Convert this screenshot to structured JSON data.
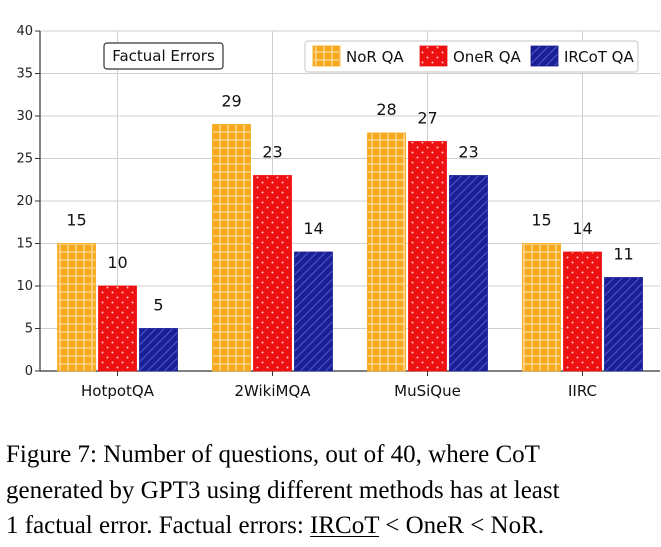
{
  "chart_data": {
    "type": "bar",
    "title": "Factual Errors",
    "categories": [
      "HotpotQA",
      "2WikiMQA",
      "MuSiQue",
      "IIRC"
    ],
    "series": [
      {
        "name": "NoR QA",
        "values": [
          15,
          29,
          28,
          15
        ],
        "color": "#f7a91d",
        "pattern": "grid"
      },
      {
        "name": "OneR QA",
        "values": [
          10,
          23,
          27,
          14
        ],
        "color": "#ee1111",
        "pattern": "dots"
      },
      {
        "name": "IRCoT QA",
        "values": [
          5,
          14,
          23,
          11
        ],
        "color": "#1a1f96",
        "pattern": "diagonal"
      }
    ],
    "ylim": [
      0,
      40
    ],
    "yticks": [
      "0",
      "5",
      "10",
      "15",
      "20",
      "25",
      "30",
      "35",
      "40"
    ],
    "xlabel": "",
    "ylabel": "",
    "grid": true,
    "legend_position": "top-right"
  },
  "caption": {
    "line1": "Figure 7: Number of questions, out of 40, where CoT",
    "line2": "generated by GPT3 using different methods has at least",
    "line3_prefix": "1 factual error. Factual errors: ",
    "line3_ircot": "IRCoT",
    "line3_mid1": " < OneR < NoR."
  }
}
